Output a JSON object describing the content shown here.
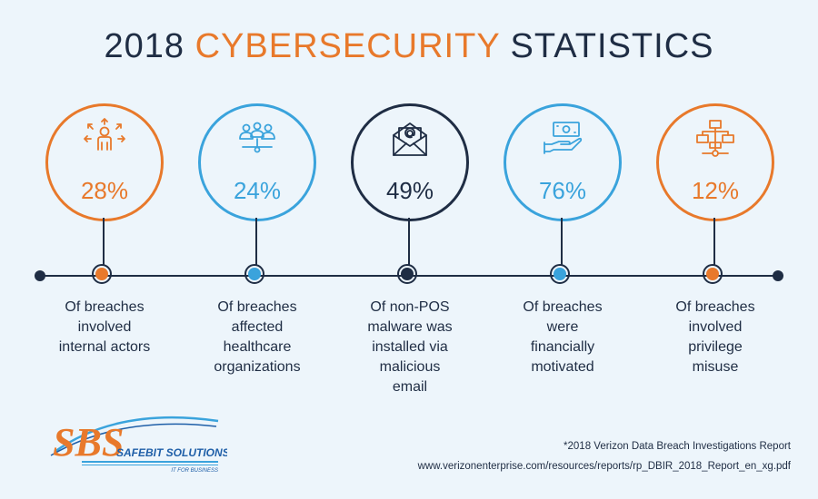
{
  "title": {
    "prefix": "2018 ",
    "accent": "CYBERSECURITY",
    "suffix": " STATISTICS"
  },
  "colors": {
    "orange": "#e8792b",
    "blue": "#3aa3dc",
    "navy": "#1f2d44"
  },
  "stats": [
    {
      "percent": "28%",
      "description": "Of breaches\ninvolved\ninternal actors",
      "color": "#e8792b",
      "icon": "person-arrows-icon"
    },
    {
      "percent": "24%",
      "description": "Of breaches\naffected\nhealthcare\norganizations",
      "color": "#3aa3dc",
      "icon": "people-network-icon"
    },
    {
      "percent": "49%",
      "description": "Of non-POS\nmalware was\ninstalled via\nmalicious\nemail",
      "color": "#1f2d44",
      "icon": "email-at-icon"
    },
    {
      "percent": "76%",
      "description": "Of breaches\nwere\nfinancially\nmotivated",
      "color": "#3aa3dc",
      "icon": "hand-money-icon"
    },
    {
      "percent": "12%",
      "description": "Of breaches\ninvolved\nprivilege\nmisuse",
      "color": "#e8792b",
      "icon": "hierarchy-icon"
    }
  ],
  "logo": {
    "letters": "SBS",
    "name": "SAFEBIT SOLUTIONS",
    "tagline": "IT FOR BUSINESS"
  },
  "footer": {
    "source": "*2018 Verizon Data Breach Investigations Report",
    "url": "www.verizonenterprise.com/resources/reports/rp_DBIR_2018_Report_en_xg.pdf"
  }
}
